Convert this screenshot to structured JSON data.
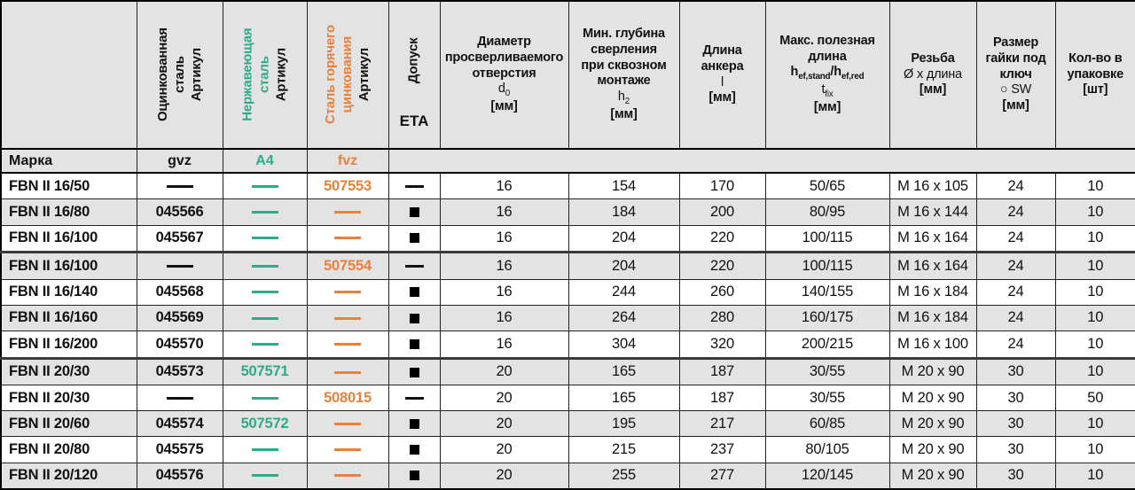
{
  "colors": {
    "teal": "#2bab87",
    "orange": "#e9813b",
    "header_bg": "#e3e3e3",
    "row_shade_bg": "#e3e3e3",
    "border": "#000000",
    "text": "#111111"
  },
  "header": {
    "corner": "",
    "steel_cols": [
      {
        "id": "gvz",
        "name": "galvanized-steel-article",
        "lines": [
          {
            "text": "Оцинкованная",
            "color": "black"
          },
          {
            "text": "сталь",
            "color": "black"
          },
          {
            "text": "Артикул",
            "color": "black"
          }
        ]
      },
      {
        "id": "a4",
        "name": "stainless-steel-article",
        "lines": [
          {
            "text": "Нержавеющая",
            "color": "teal"
          },
          {
            "text": "сталь",
            "color": "teal"
          },
          {
            "text": "Артикул",
            "color": "black"
          }
        ]
      },
      {
        "id": "fvz",
        "name": "hot-dip-galvanized-article",
        "lines": [
          {
            "text": "Сталь горячего",
            "color": "orange"
          },
          {
            "text": "цинкования",
            "color": "orange"
          },
          {
            "text": "Артикул",
            "color": "black"
          }
        ]
      }
    ],
    "approval_col": {
      "rotated": "Допуск",
      "label": "ETA"
    },
    "value_cols": [
      {
        "id": "d0",
        "lines": [
          {
            "html": "Диаметр",
            "bold": true
          },
          {
            "html": "просверливаемого",
            "bold": true
          },
          {
            "html": "отверстия",
            "bold": true
          },
          {
            "html": "d<sub>0</sub>",
            "bold": false
          },
          {
            "html": "[мм]",
            "bold": true
          }
        ]
      },
      {
        "id": "h2",
        "lines": [
          {
            "html": "Мин. глубина",
            "bold": true
          },
          {
            "html": "сверления",
            "bold": true
          },
          {
            "html": "при сквозном",
            "bold": true
          },
          {
            "html": "монтаже",
            "bold": true
          },
          {
            "html": "h<sub>2</sub>",
            "bold": false
          },
          {
            "html": "[мм]",
            "bold": true
          }
        ]
      },
      {
        "id": "l",
        "lines": [
          {
            "html": "Длина",
            "bold": true
          },
          {
            "html": "анкера",
            "bold": true
          },
          {
            "html": "l",
            "bold": false
          },
          {
            "html": "[мм]",
            "bold": true
          }
        ]
      },
      {
        "id": "tfix",
        "lines": [
          {
            "html": "Макс. полезная",
            "bold": true
          },
          {
            "html": "длина",
            "bold": true
          },
          {
            "html": "h<sub>ef,stand</sub>/h<sub>ef,red</sub>",
            "bold": true
          },
          {
            "html": "t<sub>fix</sub>",
            "bold": false
          },
          {
            "html": "[мм]",
            "bold": true
          }
        ]
      },
      {
        "id": "thread",
        "lines": [
          {
            "html": "Резьба",
            "bold": true
          },
          {
            "html": "Ø х длина",
            "bold": false
          },
          {
            "html": "[мм]",
            "bold": true
          }
        ]
      },
      {
        "id": "sw",
        "lines": [
          {
            "html": "Размер",
            "bold": true
          },
          {
            "html": "гайки под",
            "bold": true
          },
          {
            "html": "ключ",
            "bold": true
          },
          {
            "html": "○ SW",
            "bold": false
          },
          {
            "html": "[мм]",
            "bold": true
          }
        ]
      },
      {
        "id": "qty",
        "lines": [
          {
            "html": "Кол-во в",
            "bold": true
          },
          {
            "html": "упаковке",
            "bold": true
          },
          {
            "html": "[шт]",
            "bold": true
          }
        ]
      }
    ]
  },
  "mark_row": {
    "label": "Марка",
    "gvz": "gvz",
    "a4": "A4",
    "fvz": "fvz"
  },
  "rows": [
    {
      "mark": "FBN II 16/50",
      "gvz": "—",
      "a4": "—",
      "fvz": "507553",
      "eta": "—",
      "d0": "16",
      "h2": "154",
      "l": "170",
      "tfix": "50/65",
      "thread": "M 16 x 105",
      "sw": "24",
      "qty": "10",
      "shade": false,
      "thick_top": false
    },
    {
      "mark": "FBN II 16/80",
      "gvz": "045566",
      "a4": "—",
      "fvz": "—",
      "eta": "■",
      "d0": "16",
      "h2": "184",
      "l": "200",
      "tfix": "80/95",
      "thread": "M 16 x 144",
      "sw": "24",
      "qty": "10",
      "shade": true,
      "thick_top": false
    },
    {
      "mark": "FBN II 16/100",
      "gvz": "045567",
      "a4": "—",
      "fvz": "—",
      "eta": "■",
      "d0": "16",
      "h2": "204",
      "l": "220",
      "tfix": "100/115",
      "thread": "M 16 x 164",
      "sw": "24",
      "qty": "10",
      "shade": false,
      "thick_top": false
    },
    {
      "mark": "FBN II 16/100",
      "gvz": "—",
      "a4": "—",
      "fvz": "507554",
      "eta": "—",
      "d0": "16",
      "h2": "204",
      "l": "220",
      "tfix": "100/115",
      "thread": "M 16 x 164",
      "sw": "24",
      "qty": "10",
      "shade": true,
      "thick_top": true
    },
    {
      "mark": "FBN II 16/140",
      "gvz": "045568",
      "a4": "—",
      "fvz": "—",
      "eta": "■",
      "d0": "16",
      "h2": "244",
      "l": "260",
      "tfix": "140/155",
      "thread": "M 16 x 184",
      "sw": "24",
      "qty": "10",
      "shade": false,
      "thick_top": false
    },
    {
      "mark": "FBN II 16/160",
      "gvz": "045569",
      "a4": "—",
      "fvz": "—",
      "eta": "■",
      "d0": "16",
      "h2": "264",
      "l": "280",
      "tfix": "160/175",
      "thread": "M 16 x 184",
      "sw": "24",
      "qty": "10",
      "shade": true,
      "thick_top": false
    },
    {
      "mark": "FBN II 16/200",
      "gvz": "045570",
      "a4": "—",
      "fvz": "—",
      "eta": "■",
      "d0": "16",
      "h2": "304",
      "l": "320",
      "tfix": "200/215",
      "thread": "M 16 x 100",
      "sw": "24",
      "qty": "10",
      "shade": false,
      "thick_top": false
    },
    {
      "mark": "FBN II 20/30",
      "gvz": "045573",
      "a4": "507571",
      "fvz": "—",
      "eta": "■",
      "d0": "20",
      "h2": "165",
      "l": "187",
      "tfix": "30/55",
      "thread": "M 20 x 90",
      "sw": "30",
      "qty": "10",
      "shade": true,
      "thick_top": true
    },
    {
      "mark": "FBN II 20/30",
      "gvz": "—",
      "a4": "—",
      "fvz": "508015",
      "eta": "—",
      "d0": "20",
      "h2": "165",
      "l": "187",
      "tfix": "30/55",
      "thread": "M 20 x 90",
      "sw": "30",
      "qty": "50",
      "shade": false,
      "thick_top": false
    },
    {
      "mark": "FBN II 20/60",
      "gvz": "045574",
      "a4": "507572",
      "fvz": "—",
      "eta": "■",
      "d0": "20",
      "h2": "195",
      "l": "217",
      "tfix": "60/85",
      "thread": "M 20 x 90",
      "sw": "30",
      "qty": "10",
      "shade": true,
      "thick_top": false
    },
    {
      "mark": "FBN II 20/80",
      "gvz": "045575",
      "a4": "—",
      "fvz": "—",
      "eta": "■",
      "d0": "20",
      "h2": "215",
      "l": "237",
      "tfix": "80/105",
      "thread": "M 20 x 90",
      "sw": "30",
      "qty": "10",
      "shade": false,
      "thick_top": false
    },
    {
      "mark": "FBN II 20/120",
      "gvz": "045576",
      "a4": "—",
      "fvz": "—",
      "eta": "■",
      "d0": "20",
      "h2": "255",
      "l": "277",
      "tfix": "120/145",
      "thread": "M 20 x 90",
      "sw": "30",
      "qty": "10",
      "shade": true,
      "thick_top": false
    }
  ]
}
